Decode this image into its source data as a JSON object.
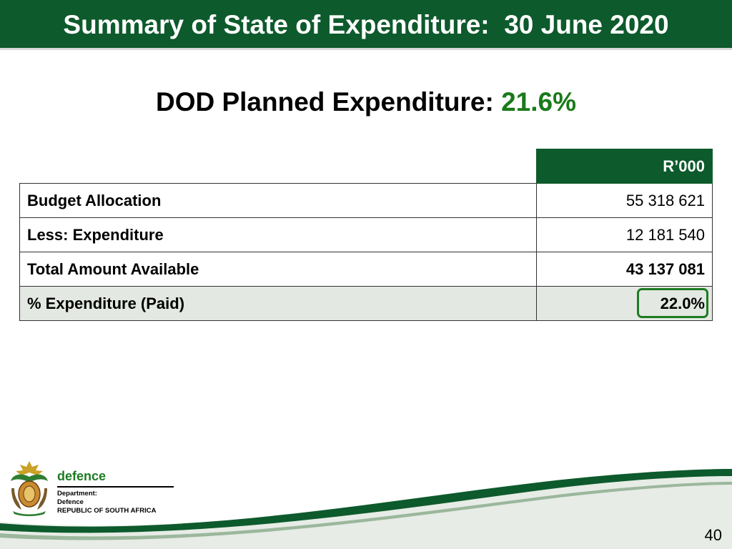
{
  "header": {
    "title": "Summary of State of Expenditure:  30 June 2020"
  },
  "subtitle": {
    "label": "DOD Planned Expenditure:",
    "value": "21.6%"
  },
  "table": {
    "unit_header": "R’000",
    "rows": [
      {
        "label": "Budget Allocation",
        "value": "55 318 621"
      },
      {
        "label": "Less: Expenditure",
        "value": "12 181 540"
      },
      {
        "label": "Total Amount Available",
        "value": "43 137 081"
      },
      {
        "label": "% Expenditure (Paid)",
        "value": "22.0%"
      }
    ]
  },
  "footer": {
    "brand_word": "defence",
    "dept_line1": "Department:",
    "dept_line2": "Defence",
    "dept_line3": "REPUBLIC OF SOUTH AFRICA",
    "page_number": "40"
  },
  "colors": {
    "primary_green": "#0d5a2c",
    "accent_green": "#1e7b22",
    "highlight_row": "#e3e8e2"
  }
}
